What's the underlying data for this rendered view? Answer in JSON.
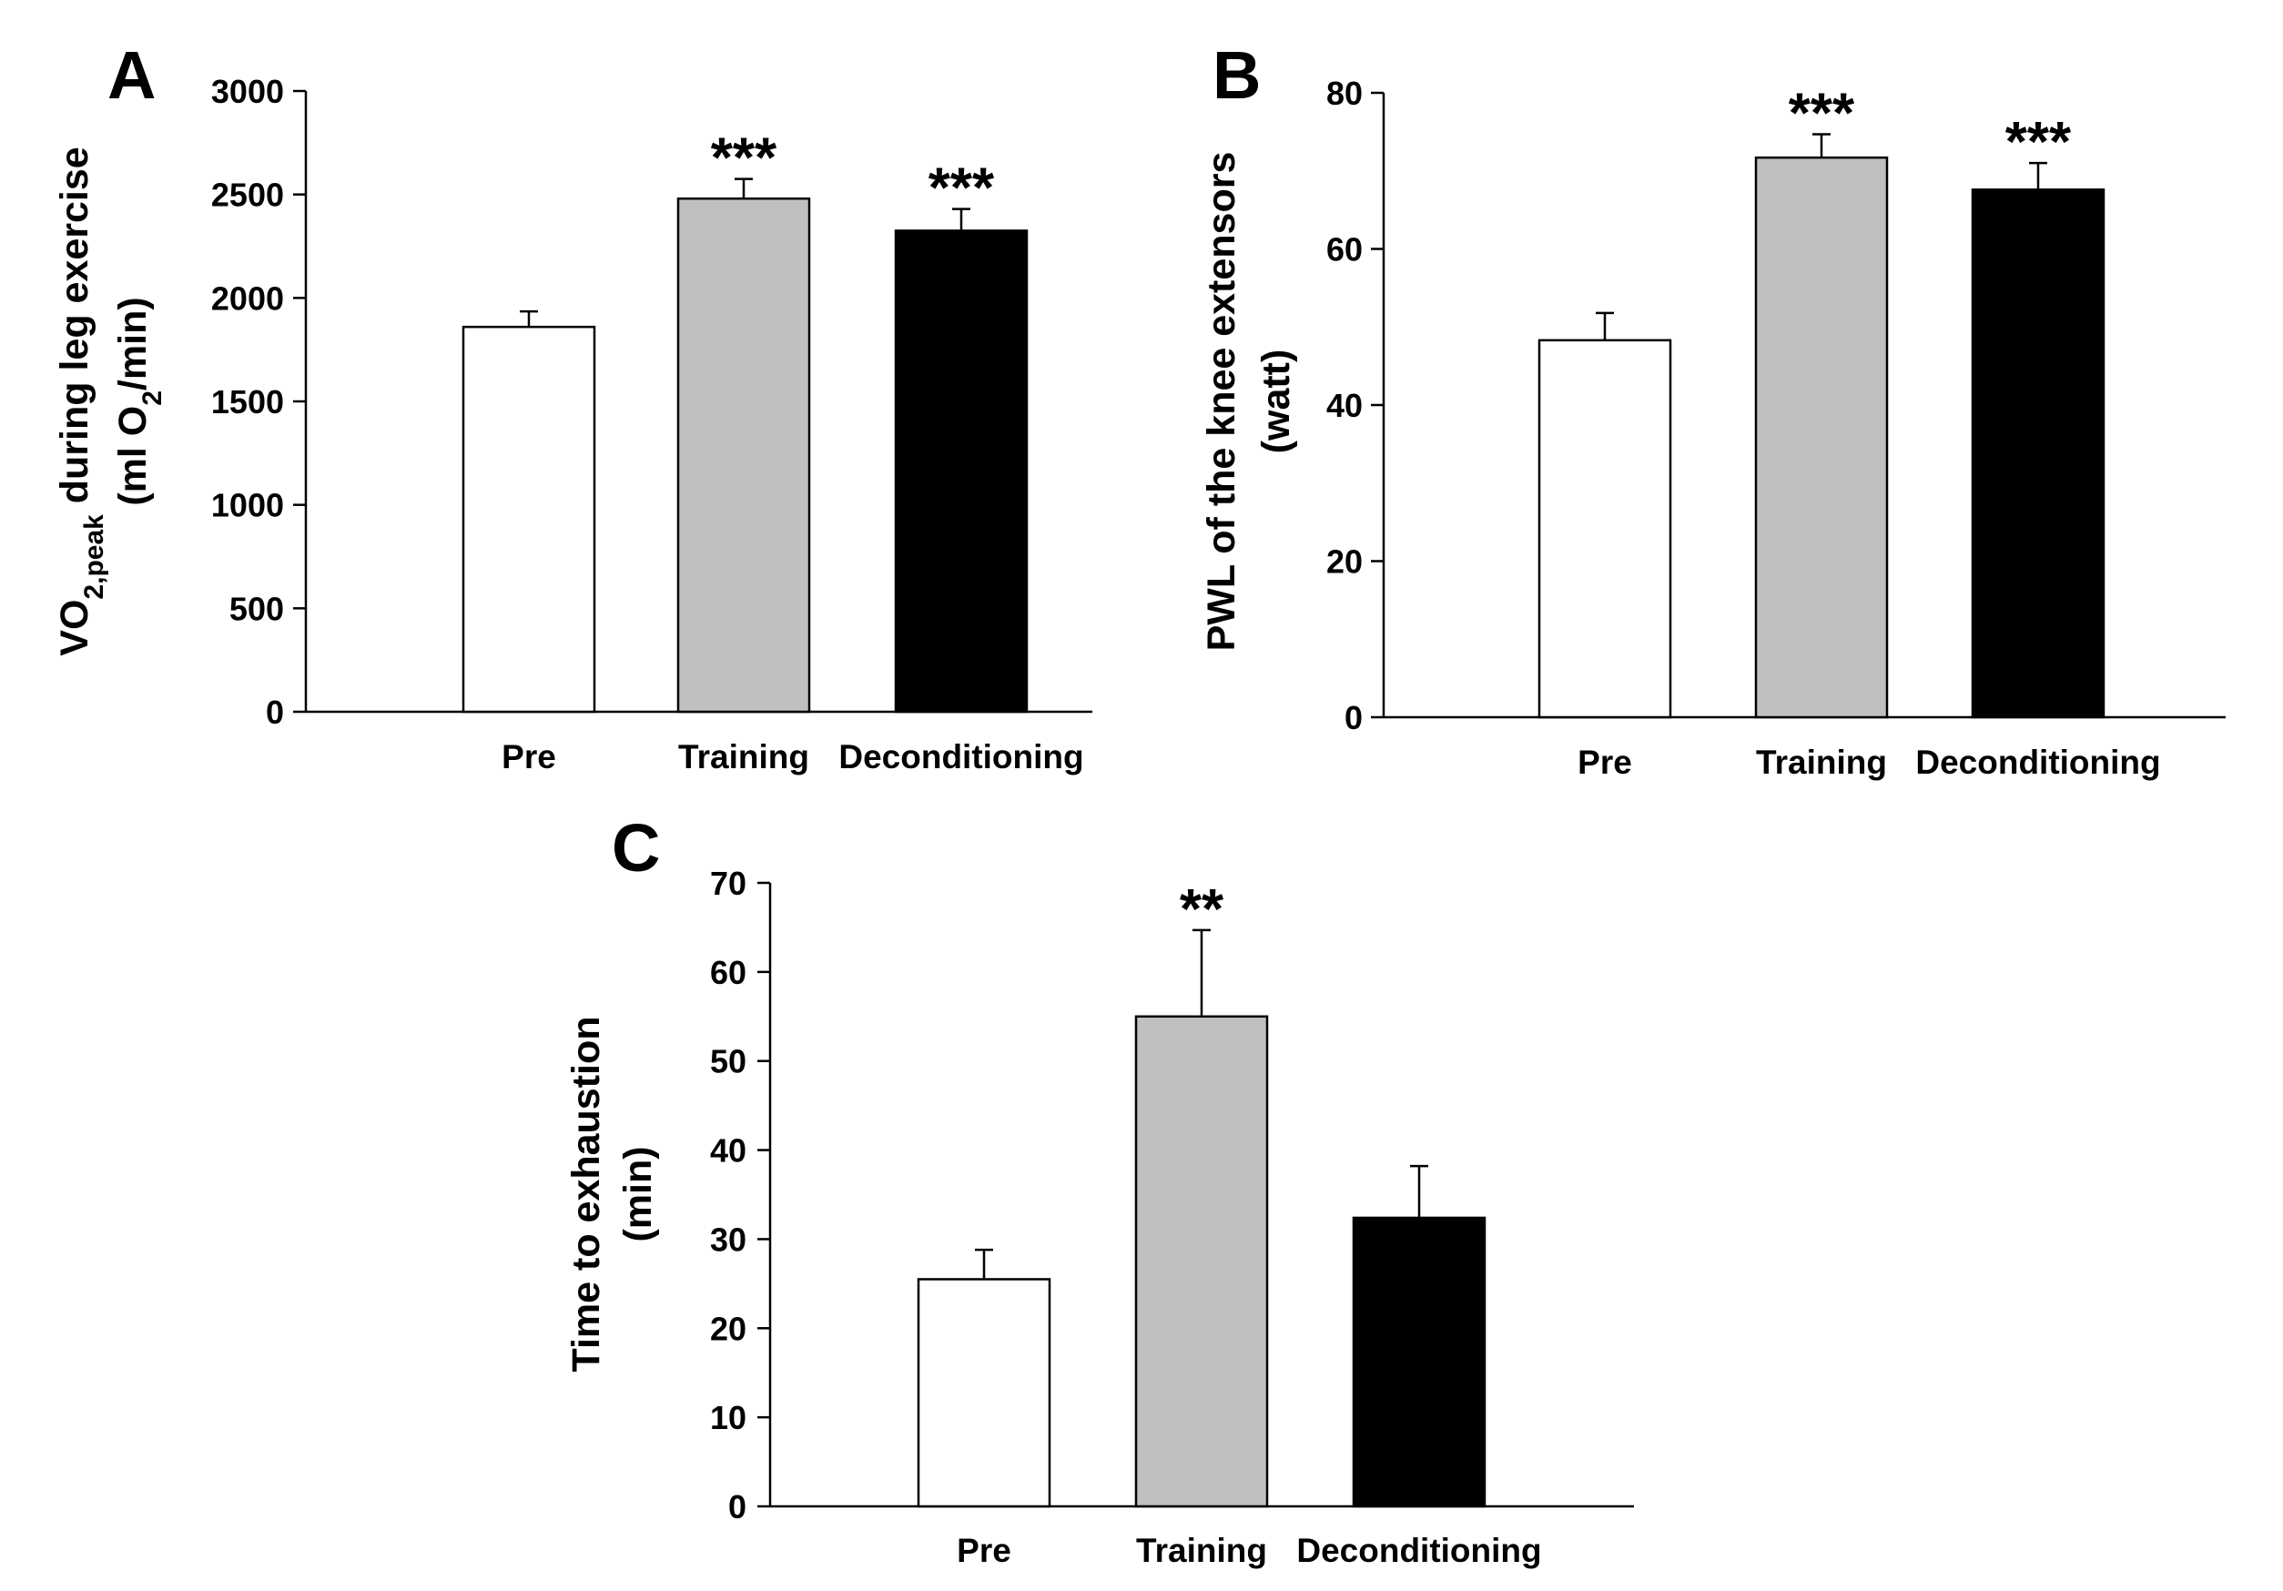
{
  "chart_data": [
    {
      "panel": "A",
      "type": "bar",
      "categories": [
        "Pre",
        "Training",
        "Deconditioning"
      ],
      "values": [
        1860,
        2480,
        2325
      ],
      "errors": [
        75,
        95,
        105
      ],
      "significance": [
        "",
        "***",
        "***"
      ],
      "bar_colors": [
        "#ffffff",
        "#c0c0c0",
        "#000000"
      ],
      "ylim": [
        0,
        3000
      ],
      "yticks": [
        "0",
        "500",
        "1000",
        "1500",
        "2000",
        "2500",
        "3000"
      ],
      "ylabel": {
        "line1_prefix": "VO",
        "line1_sub": "2,peak",
        "line1_suffix": " during leg exercise",
        "line2_prefix": "(ml O",
        "line2_sub": "2",
        "line2_suffix": "/min)"
      }
    },
    {
      "panel": "B",
      "type": "bar",
      "categories": [
        "Pre",
        "Training",
        "Deconditioning"
      ],
      "values": [
        48.3,
        71.7,
        67.6
      ],
      "errors": [
        3.5,
        3.0,
        3.4
      ],
      "significance": [
        "",
        "***",
        "***"
      ],
      "bar_colors": [
        "#ffffff",
        "#c0c0c0",
        "#000000"
      ],
      "ylim": [
        0,
        80
      ],
      "yticks": [
        "0",
        "20",
        "40",
        "60",
        "80"
      ],
      "ylabel": {
        "line1": "PWL of the knee extensors",
        "line2": "(watt)"
      }
    },
    {
      "panel": "C",
      "type": "bar",
      "categories": [
        "Pre",
        "Training",
        "Deconditioning"
      ],
      "values": [
        25.5,
        55.0,
        32.4
      ],
      "errors": [
        3.3,
        9.7,
        5.8
      ],
      "significance": [
        "",
        "**",
        ""
      ],
      "bar_colors": [
        "#ffffff",
        "#c0c0c0",
        "#000000"
      ],
      "ylim": [
        0,
        70
      ],
      "yticks": [
        "0",
        "10",
        "20",
        "30",
        "40",
        "50",
        "60",
        "70"
      ],
      "ylabel": {
        "line1": "Time to exhaustion",
        "line2": "(min)"
      }
    }
  ]
}
